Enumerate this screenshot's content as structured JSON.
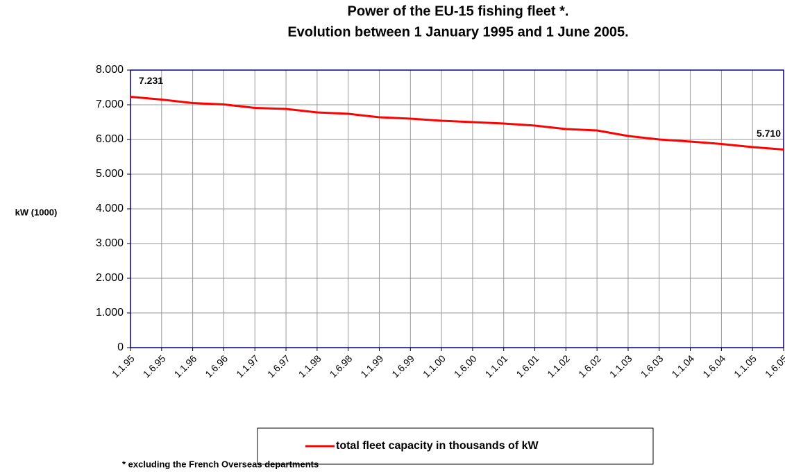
{
  "chart_data": {
    "type": "line",
    "title": "Power of the EU-15 fishing fleet *.",
    "subtitle": "Evolution between 1 January 1995 and 1 June 2005.",
    "y_label": "kW (1000)",
    "footnote": "* excluding the French Overseas departments",
    "categories": [
      "1.1.95",
      "1.6.95",
      "1.1.96",
      "1.6.96",
      "1.1.97",
      "1.6.97",
      "1.1.98",
      "1.6.98",
      "1.1.99",
      "1.6.99",
      "1.1.00",
      "1.6.00",
      "1.1.01",
      "1.6.01",
      "1.1.02",
      "1.6.02",
      "1.1.03",
      "1.6.03",
      "1.1.04",
      "1.6.04",
      "1.1.05",
      "1.6.05"
    ],
    "series": [
      {
        "name": "total fleet capacity in thousands of kW",
        "color": "#ff0000",
        "values": [
          7231,
          7150,
          7050,
          7010,
          6910,
          6880,
          6780,
          6740,
          6640,
          6600,
          6540,
          6500,
          6460,
          6400,
          6300,
          6260,
          6100,
          6000,
          5940,
          5870,
          5780,
          5710
        ],
        "value_labels": [
          "7.231",
          null,
          null,
          null,
          null,
          null,
          null,
          null,
          null,
          null,
          null,
          null,
          null,
          null,
          null,
          null,
          null,
          null,
          null,
          null,
          null,
          "5.710"
        ]
      }
    ],
    "ylim": [
      0,
      8000
    ],
    "yticks": [
      0,
      {
        "value": 1000,
        "label": "1.000"
      },
      {
        "value": 2000,
        "label": "2.000"
      },
      {
        "value": 3000,
        "label": "3.000"
      },
      {
        "value": 4000,
        "label": "4.000"
      },
      {
        "value": 5000,
        "label": "5.000"
      },
      {
        "value": 6000,
        "label": "6.000"
      },
      {
        "value": 7000,
        "label": "7.000"
      },
      {
        "value": 8000,
        "label": "8.000"
      }
    ],
    "grid": true
  }
}
